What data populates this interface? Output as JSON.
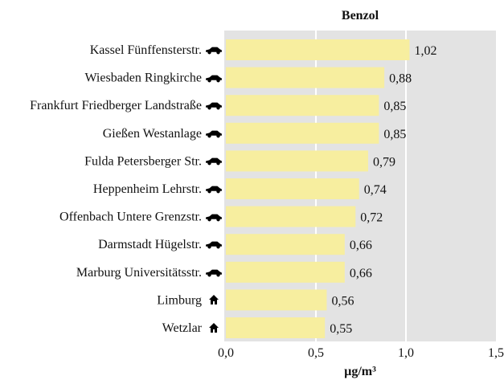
{
  "chart_data": {
    "type": "bar",
    "orientation": "horizontal",
    "title": "Benzol",
    "x_label": "µg/m³",
    "categories": [
      "Kassel Fünffensterstr.",
      "Wiesbaden Ringkirche",
      "Frankfurt Friedberger Landstraße",
      "Gießen Westanlage",
      "Fulda Petersberger Str.",
      "Heppenheim Lehrstr.",
      "Offenbach Untere Grenzstr.",
      "Darmstadt Hügelstr.",
      "Marburg Universitätsstr.",
      "Limburg",
      "Wetzlar"
    ],
    "values": [
      1.02,
      0.88,
      0.85,
      0.85,
      0.79,
      0.74,
      0.72,
      0.66,
      0.66,
      0.56,
      0.55
    ],
    "value_labels": [
      "1,02",
      "0,88",
      "0,85",
      "0,85",
      "0,79",
      "0,74",
      "0,72",
      "0,66",
      "0,66",
      "0,56",
      "0,55"
    ],
    "color": "#f7ee9f",
    "xlim": [
      0,
      1.5
    ],
    "xticks": [
      {
        "value": 0,
        "label": "0,0"
      },
      {
        "value": 0.5,
        "label": "0,5"
      },
      {
        "value": 1,
        "label": "1,0"
      },
      {
        "value": 1.5,
        "label": "1,5"
      }
    ],
    "grid": true
  }
}
